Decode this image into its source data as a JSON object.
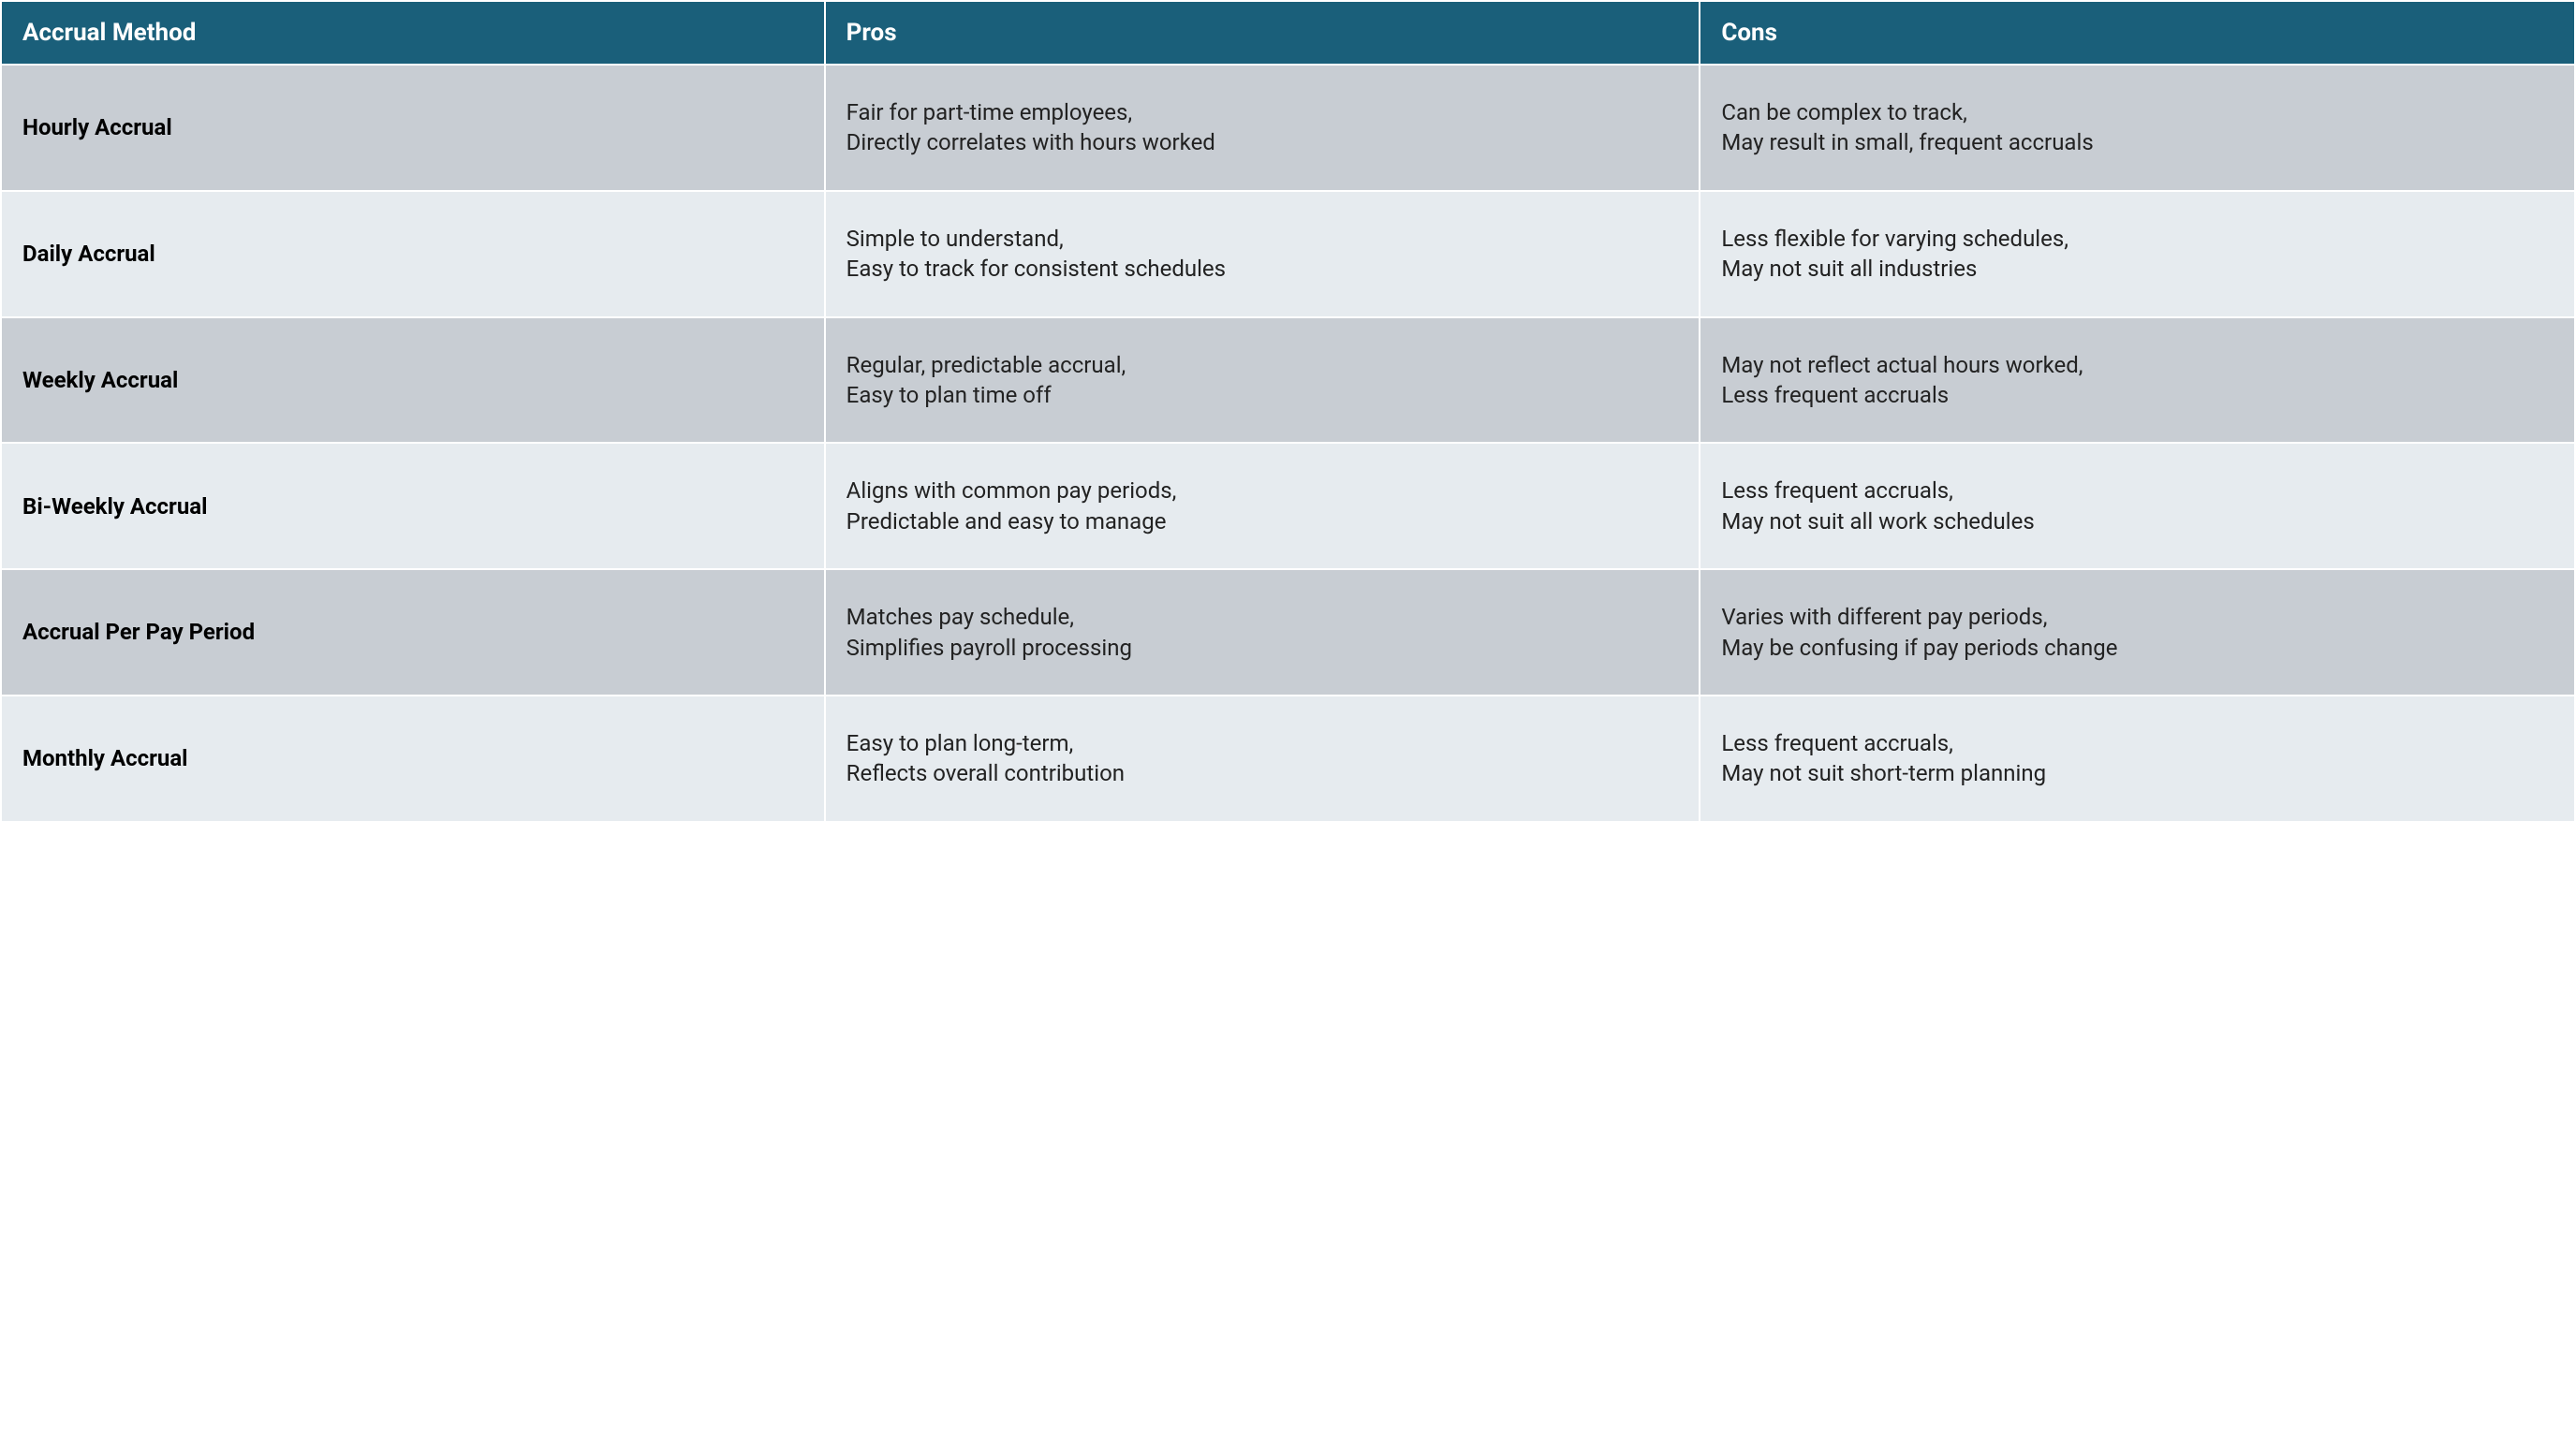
{
  "table": {
    "type": "table",
    "header_bg": "#1a5f7a",
    "header_text_color": "#ffffff",
    "row_odd_bg": "#c8cdd3",
    "row_even_bg": "#e6ebef",
    "border_color": "#ffffff",
    "border_width": 2,
    "header_fontsize": 26,
    "header_fontweight": 700,
    "cell_fontsize": 24,
    "method_fontweight": 700,
    "text_color": "#1a1a1a",
    "columns": [
      {
        "key": "method",
        "label": "Accrual Method",
        "width_pct": 32
      },
      {
        "key": "pros",
        "label": "Pros",
        "width_pct": 34
      },
      {
        "key": "cons",
        "label": "Cons",
        "width_pct": 34
      }
    ],
    "rows": [
      {
        "method": "Hourly Accrual",
        "pros": "Fair for part-time employees,\nDirectly correlates with hours worked",
        "cons": "Can be complex to track,\nMay result in small, frequent accruals"
      },
      {
        "method": "Daily Accrual",
        "pros": "Simple to understand,\nEasy to track for consistent schedules",
        "cons": "Less flexible for varying schedules,\nMay not suit all industries"
      },
      {
        "method": "Weekly Accrual",
        "pros": "Regular, predictable accrual,\nEasy to plan time off",
        "cons": "May not reflect actual hours worked,\nLess frequent accruals"
      },
      {
        "method": "Bi-Weekly Accrual",
        "pros": "Aligns with common pay periods,\nPredictable and easy to manage",
        "cons": "Less frequent accruals,\nMay not suit all work schedules"
      },
      {
        "method": "Accrual Per Pay Period",
        "pros": "Matches pay schedule,\nSimplifies payroll processing",
        "cons": "Varies with different pay periods,\nMay be confusing if pay periods change"
      },
      {
        "method": "Monthly Accrual",
        "pros": "Easy to plan long-term,\nReflects overall contribution",
        "cons": "Less frequent accruals,\nMay not suit short-term planning"
      }
    ]
  }
}
